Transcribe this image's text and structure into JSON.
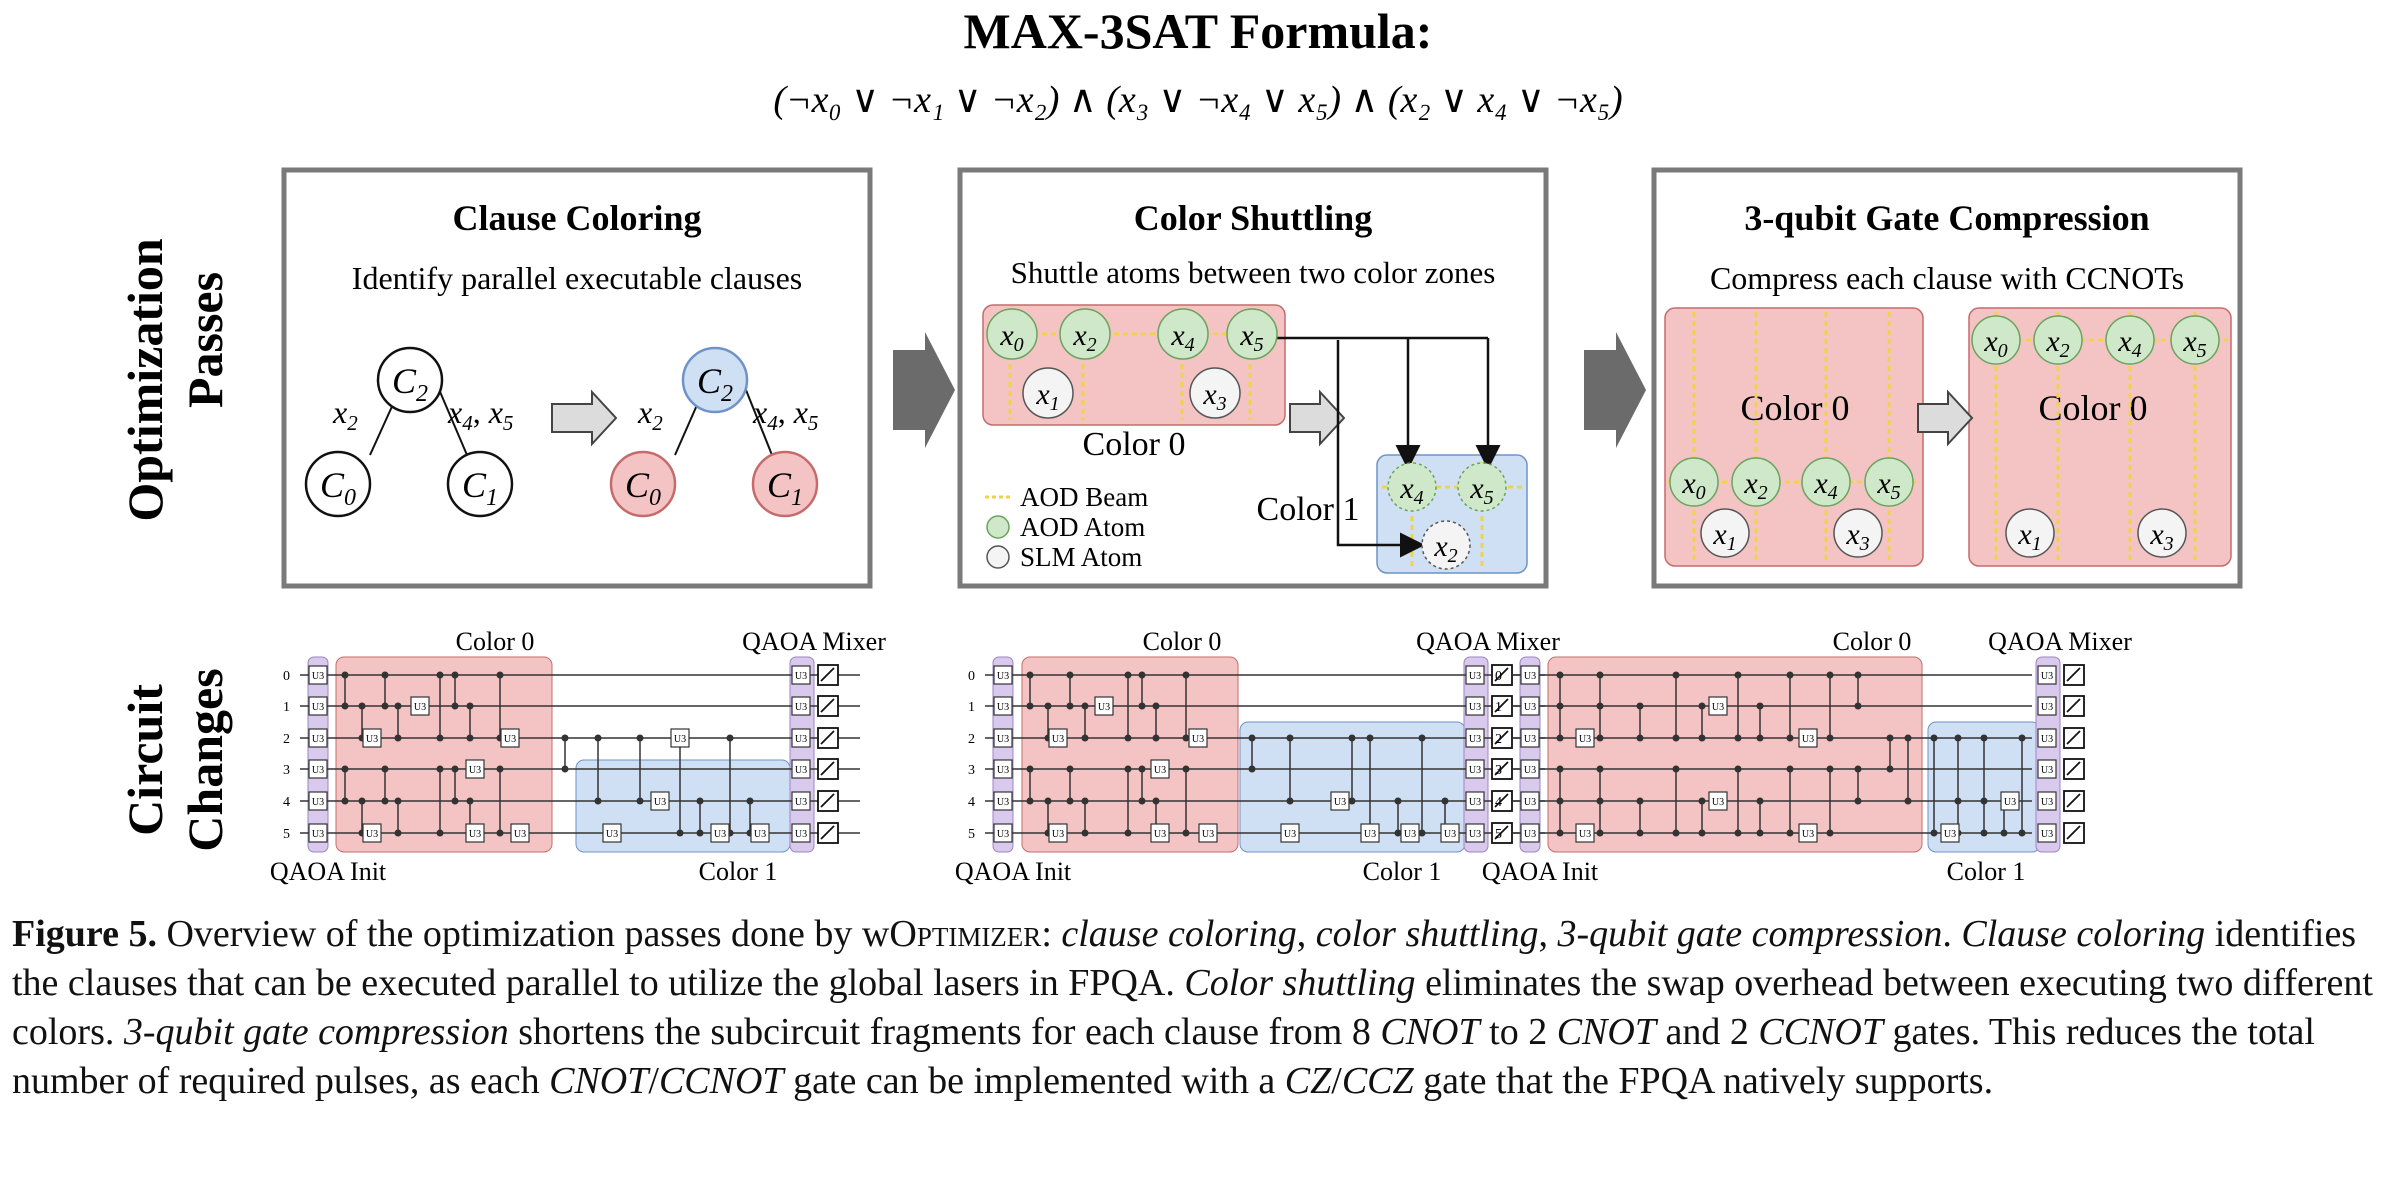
{
  "header": {
    "title": "MAX-3SAT Formula:",
    "formula": "(¬x₀ ∨ ¬x₁ ∨ ¬x₂) ∧ (x₃ ∨ ¬x₄ ∨ x₅) ∧ (x₂ ∨ x₄ ∨ ¬x₅)"
  },
  "row_labels": {
    "passes_line1": "Optimization",
    "passes_line2": "Passes",
    "circuit_line1": "Circuit",
    "circuit_line2": "Changes"
  },
  "panels": {
    "clause_coloring": {
      "title": "Clause Coloring",
      "subtitle": "Identify parallel executable clauses",
      "nodes": {
        "top": "C",
        "top_sub": "2",
        "left": "C",
        "left_sub": "0",
        "right": "C",
        "right_sub": "1"
      },
      "edge_left": {
        "var": "x",
        "sub": "2"
      },
      "edge_right": {
        "var1": "x",
        "sub1": "4",
        "sep": ", ",
        "var2": "x",
        "sub2": "5"
      }
    },
    "color_shuttling": {
      "title": "Color Shuttling",
      "subtitle": "Shuttle atoms between two color zones",
      "color0_label": "Color 0",
      "color1_label": "Color 1",
      "legend": {
        "aod_beam": "AOD Beam",
        "aod_atom": "AOD Atom",
        "slm_atom": "SLM Atom"
      }
    },
    "compression": {
      "title": "3-qubit Gate Compression",
      "subtitle": "Compress each clause with CCNOTs",
      "zone_label_left": "Color 0",
      "zone_label_right": "Color 0"
    }
  },
  "atoms": {
    "var": "x",
    "subs": [
      "0",
      "1",
      "2",
      "3",
      "4",
      "5"
    ]
  },
  "circuits": {
    "color0": "Color 0",
    "mixer": "QAOA Mixer",
    "init": "QAOA Init",
    "color1": "Color 1",
    "gate_label": "U3",
    "qubit_indices": [
      "0",
      "1",
      "2",
      "3",
      "4",
      "5"
    ]
  },
  "caption": {
    "fig_label": "Figure 5.",
    "s1a": " Overview of the optimization passes done by ",
    "tool_w": "w",
    "tool_O": "O",
    "tool_rest": "ptimizer",
    "s1b": ": ",
    "p1": "clause coloring",
    "c1": ", ",
    "p2": "color shuttling",
    "c2": ", ",
    "p3": "3-qubit gate compression",
    "end1": ".",
    "p4": "Clause coloring",
    "s2": " identifies the clauses that can be executed parallel to utilize the global lasers in FPQA. ",
    "p5": "Color shuttling",
    "s3": " eliminates the swap overhead between executing two different colors. ",
    "p6": "3-qubit gate compression",
    "s4": " shortens the subcircuit fragments for each clause from 8 ",
    "g1": "CNOT",
    "s5": " to 2 ",
    "g2": "CNOT",
    "s6": " and 2 ",
    "g3": "CCNOT",
    "s7": " gates. This reduces the total number of required pulses, as each ",
    "g4": "CNOT",
    "slash1": "/",
    "g5": "CCNOT",
    "s8": " gate can be implemented with a ",
    "g6": "CZ",
    "slash2": "/",
    "g7": "CCZ",
    "s9": " gate that the FPQA natively supports."
  },
  "colors": {
    "red_fill": "#f4c4c4",
    "red_stroke": "#c66b6b",
    "blue_fill": "#cfe0f5",
    "blue_stroke": "#6f93c6",
    "green_fill": "#cfe8c9",
    "green_stroke": "#6aa35d",
    "beam": "#f0d34a",
    "arrow_gray": "#6b6b6b",
    "frame_gray": "#7a7a7a",
    "purple_fill": "#d9c9ec"
  }
}
